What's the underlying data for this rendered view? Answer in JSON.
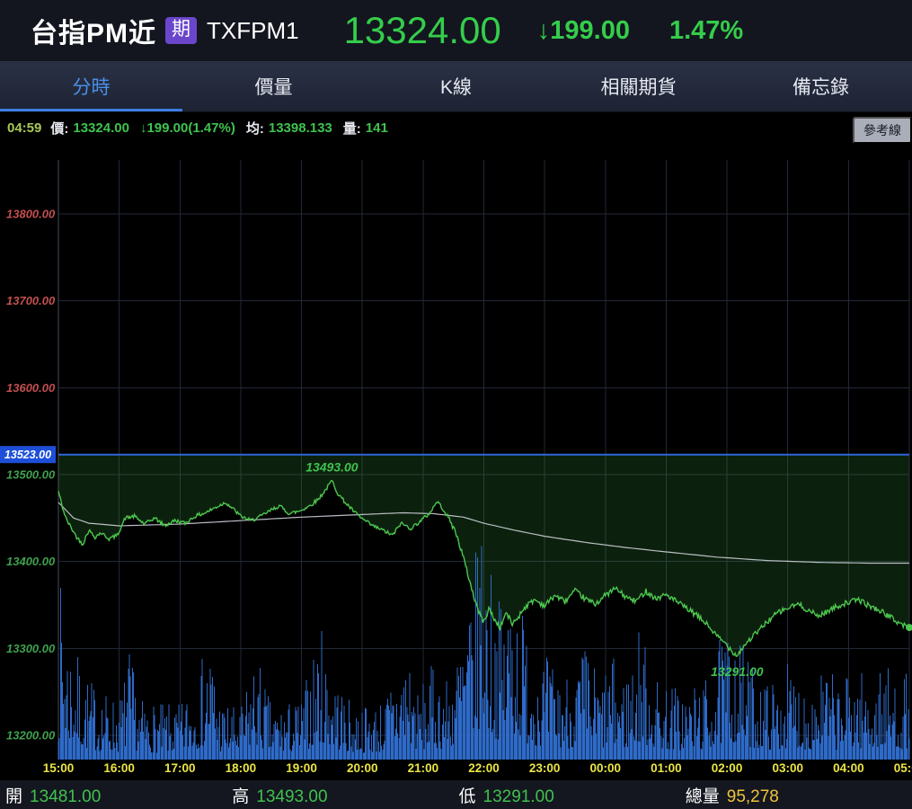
{
  "header": {
    "title": "台指PM近",
    "badge": "期",
    "symbol": "TXFPM1",
    "price": "13324.00",
    "change_arrow": "↓",
    "change_value": "199.00",
    "percent": "1.47%"
  },
  "tabs": [
    {
      "label": "分時",
      "active": true
    },
    {
      "label": "價量",
      "active": false
    },
    {
      "label": "K線",
      "active": false
    },
    {
      "label": "相關期貨",
      "active": false
    },
    {
      "label": "備忘錄",
      "active": false
    }
  ],
  "info_bar": {
    "time": "04:59",
    "price_label": "價:",
    "price": "13324.00",
    "change": "↓199.00(1.47%)",
    "avg_label": "均:",
    "avg": "13398.133",
    "vol_label": "量:",
    "vol": "141",
    "ref_button": "參考線"
  },
  "footer": {
    "open_label": "開",
    "open": "13481.00",
    "high_label": "高",
    "high": "13493.00",
    "low_label": "低",
    "low": "13291.00",
    "total_label": "總量",
    "total": "95,278"
  },
  "chart_data": {
    "type": "line",
    "x_ticks": [
      "15:00",
      "16:00",
      "17:00",
      "18:00",
      "19:00",
      "20:00",
      "21:00",
      "22:00",
      "23:00",
      "00:00",
      "01:00",
      "02:00",
      "03:00",
      "04:00",
      "05:00"
    ],
    "x_range_minutes": [
      0,
      840
    ],
    "y_range": [
      13172,
      13862
    ],
    "reference_price": 13523,
    "open": 13481,
    "high": 13493,
    "low": 13291,
    "close": 13324,
    "y_ticks": [
      {
        "label": "13800.00",
        "value": 13800,
        "color": "#c24f4f"
      },
      {
        "label": "13700.00",
        "value": 13700,
        "color": "#c24f4f"
      },
      {
        "label": "13600.00",
        "value": 13600,
        "color": "#c24f4f"
      },
      {
        "label": "13523.00",
        "value": 13523,
        "reference": true
      },
      {
        "label": "13500.00",
        "value": 13500,
        "color": "#3fa14f"
      },
      {
        "label": "13400.00",
        "value": 13400,
        "color": "#3fa14f"
      },
      {
        "label": "13300.00",
        "value": 13300,
        "color": "#3fa14f"
      },
      {
        "label": "13200.00",
        "value": 13200,
        "color": "#3fa14f"
      }
    ],
    "annotations": [
      {
        "text": "13493.00",
        "t": 270,
        "price": 13493,
        "position": "above"
      },
      {
        "text": "13291.00",
        "t": 670,
        "price": 13291,
        "position": "below"
      }
    ],
    "price_anchors": [
      [
        0,
        13481
      ],
      [
        4,
        13462
      ],
      [
        8,
        13448
      ],
      [
        12,
        13440
      ],
      [
        18,
        13428
      ],
      [
        24,
        13420
      ],
      [
        30,
        13436
      ],
      [
        36,
        13428
      ],
      [
        42,
        13433
      ],
      [
        50,
        13426
      ],
      [
        58,
        13430
      ],
      [
        66,
        13450
      ],
      [
        75,
        13452
      ],
      [
        85,
        13443
      ],
      [
        95,
        13450
      ],
      [
        105,
        13441
      ],
      [
        115,
        13447
      ],
      [
        125,
        13444
      ],
      [
        135,
        13452
      ],
      [
        145,
        13456
      ],
      [
        155,
        13462
      ],
      [
        165,
        13468
      ],
      [
        172,
        13461
      ],
      [
        180,
        13452
      ],
      [
        190,
        13447
      ],
      [
        200,
        13452
      ],
      [
        210,
        13459
      ],
      [
        218,
        13464
      ],
      [
        228,
        13455
      ],
      [
        238,
        13458
      ],
      [
        248,
        13464
      ],
      [
        256,
        13471
      ],
      [
        263,
        13481
      ],
      [
        270,
        13493
      ],
      [
        276,
        13478
      ],
      [
        283,
        13468
      ],
      [
        292,
        13457
      ],
      [
        300,
        13449
      ],
      [
        310,
        13441
      ],
      [
        320,
        13436
      ],
      [
        330,
        13430
      ],
      [
        338,
        13444
      ],
      [
        348,
        13438
      ],
      [
        358,
        13447
      ],
      [
        366,
        13455
      ],
      [
        374,
        13469
      ],
      [
        380,
        13460
      ],
      [
        386,
        13448
      ],
      [
        392,
        13434
      ],
      [
        398,
        13412
      ],
      [
        404,
        13386
      ],
      [
        410,
        13360
      ],
      [
        415,
        13342
      ],
      [
        420,
        13330
      ],
      [
        425,
        13346
      ],
      [
        430,
        13334
      ],
      [
        436,
        13324
      ],
      [
        442,
        13341
      ],
      [
        448,
        13328
      ],
      [
        454,
        13336
      ],
      [
        460,
        13347
      ],
      [
        470,
        13356
      ],
      [
        480,
        13349
      ],
      [
        490,
        13361
      ],
      [
        500,
        13354
      ],
      [
        510,
        13366
      ],
      [
        520,
        13357
      ],
      [
        530,
        13351
      ],
      [
        540,
        13361
      ],
      [
        550,
        13369
      ],
      [
        560,
        13359
      ],
      [
        570,
        13354
      ],
      [
        580,
        13366
      ],
      [
        590,
        13357
      ],
      [
        600,
        13362
      ],
      [
        610,
        13354
      ],
      [
        620,
        13346
      ],
      [
        630,
        13338
      ],
      [
        640,
        13328
      ],
      [
        650,
        13314
      ],
      [
        660,
        13304
      ],
      [
        665,
        13297
      ],
      [
        670,
        13291
      ],
      [
        676,
        13302
      ],
      [
        684,
        13312
      ],
      [
        692,
        13321
      ],
      [
        700,
        13331
      ],
      [
        710,
        13341
      ],
      [
        720,
        13346
      ],
      [
        730,
        13351
      ],
      [
        740,
        13344
      ],
      [
        750,
        13337
      ],
      [
        760,
        13343
      ],
      [
        770,
        13349
      ],
      [
        780,
        13353
      ],
      [
        790,
        13356
      ],
      [
        800,
        13349
      ],
      [
        810,
        13344
      ],
      [
        820,
        13337
      ],
      [
        830,
        13329
      ],
      [
        840,
        13324
      ]
    ],
    "avg_anchors": [
      [
        0,
        13468
      ],
      [
        15,
        13450
      ],
      [
        30,
        13444
      ],
      [
        60,
        13441
      ],
      [
        120,
        13443
      ],
      [
        180,
        13447
      ],
      [
        240,
        13451
      ],
      [
        300,
        13454
      ],
      [
        340,
        13456
      ],
      [
        370,
        13455
      ],
      [
        400,
        13451
      ],
      [
        420,
        13444
      ],
      [
        450,
        13436
      ],
      [
        480,
        13429
      ],
      [
        520,
        13422
      ],
      [
        560,
        13416
      ],
      [
        600,
        13411
      ],
      [
        650,
        13405
      ],
      [
        700,
        13401
      ],
      [
        750,
        13399
      ],
      [
        800,
        13398
      ],
      [
        840,
        13398
      ]
    ],
    "volume_profile": [
      [
        0,
        0.55
      ],
      [
        3,
        0.68
      ],
      [
        8,
        0.5
      ],
      [
        15,
        0.42
      ],
      [
        25,
        0.32
      ],
      [
        40,
        0.26
      ],
      [
        60,
        0.22
      ],
      [
        70,
        0.4
      ],
      [
        80,
        0.22
      ],
      [
        100,
        0.2
      ],
      [
        120,
        0.2
      ],
      [
        135,
        0.3
      ],
      [
        150,
        0.45
      ],
      [
        160,
        0.22
      ],
      [
        180,
        0.18
      ],
      [
        195,
        0.4
      ],
      [
        210,
        0.2
      ],
      [
        240,
        0.22
      ],
      [
        258,
        0.5
      ],
      [
        270,
        0.35
      ],
      [
        285,
        0.22
      ],
      [
        300,
        0.2
      ],
      [
        320,
        0.22
      ],
      [
        345,
        0.45
      ],
      [
        355,
        0.25
      ],
      [
        360,
        0.28
      ],
      [
        370,
        0.35
      ],
      [
        385,
        0.3
      ],
      [
        395,
        0.45
      ],
      [
        405,
        0.55
      ],
      [
        412,
        0.75
      ],
      [
        418,
        1.0
      ],
      [
        424,
        0.8
      ],
      [
        430,
        0.65
      ],
      [
        438,
        0.55
      ],
      [
        448,
        0.75
      ],
      [
        456,
        0.6
      ],
      [
        465,
        0.45
      ],
      [
        480,
        0.38
      ],
      [
        500,
        0.32
      ],
      [
        520,
        0.42
      ],
      [
        535,
        0.3
      ],
      [
        545,
        0.38
      ],
      [
        560,
        0.32
      ],
      [
        575,
        0.5
      ],
      [
        590,
        0.3
      ],
      [
        605,
        0.28
      ],
      [
        620,
        0.26
      ],
      [
        640,
        0.3
      ],
      [
        655,
        0.45
      ],
      [
        668,
        0.5
      ],
      [
        680,
        0.38
      ],
      [
        695,
        0.3
      ],
      [
        710,
        0.28
      ],
      [
        720,
        0.35
      ],
      [
        740,
        0.28
      ],
      [
        755,
        0.35
      ],
      [
        770,
        0.28
      ],
      [
        785,
        0.35
      ],
      [
        800,
        0.3
      ],
      [
        815,
        0.35
      ],
      [
        825,
        0.3
      ],
      [
        840,
        0.32
      ]
    ],
    "colors": {
      "price_line": "#4dc74f",
      "avg_line": "#ccd0d8",
      "volume": "#2e6ac8",
      "area_fill": "rgba(56,150,60,0.22)",
      "reference_line": "#2f66d8",
      "reference_bg": "#1d4fd8",
      "grid": "#232838",
      "grid_first": "#454b5c",
      "x_label": "#eae545",
      "annotation": "#3fc24f"
    }
  }
}
